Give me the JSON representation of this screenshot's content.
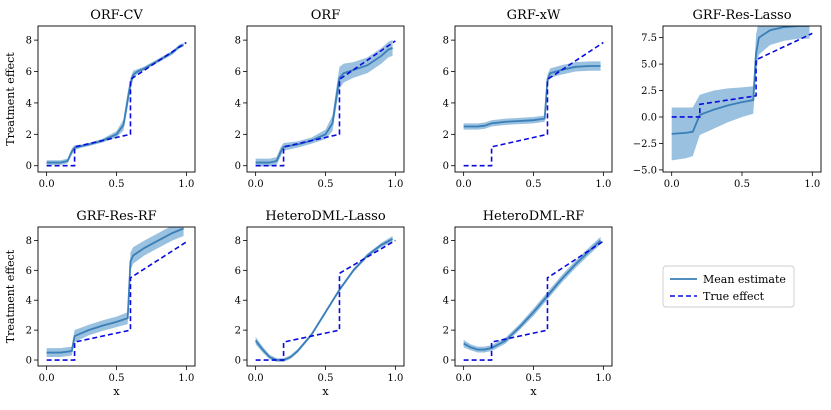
{
  "figure": {
    "legend": {
      "placement": "right",
      "mean_label": "Mean estimate",
      "true_label": "True effect"
    },
    "colors": {
      "mean": "#3a7fb8",
      "band": "#8fbadc",
      "true": "#0a0adf"
    }
  },
  "chart_data": [
    {
      "type": "line",
      "title": "ORF-CV",
      "xlabel": "",
      "ylabel": "Treatment effect",
      "xlim": [
        0,
        1
      ],
      "ylim": [
        -0.4,
        8.9
      ],
      "xticks": [
        0.0,
        0.5,
        1.0
      ],
      "xtick_labels": [
        "0.0",
        "0.5",
        "1.0"
      ],
      "yticks": [
        0,
        2,
        4,
        6,
        8
      ],
      "ytick_labels": [
        "0",
        "2",
        "4",
        "6",
        "8"
      ],
      "series": [
        {
          "name": "Mean estimate",
          "x": [
            0.0,
            0.1,
            0.15,
            0.18,
            0.2,
            0.25,
            0.3,
            0.4,
            0.5,
            0.55,
            0.58,
            0.6,
            0.62,
            0.65,
            0.7,
            0.8,
            0.9,
            0.95,
            0.98
          ],
          "y": [
            0.2,
            0.2,
            0.3,
            0.9,
            1.15,
            1.25,
            1.35,
            1.6,
            2.0,
            2.6,
            4.2,
            5.2,
            5.8,
            6.0,
            6.2,
            6.7,
            7.2,
            7.6,
            7.7
          ],
          "band": [
            0.15,
            0.15,
            0.15,
            0.2,
            0.15,
            0.1,
            0.1,
            0.12,
            0.2,
            0.35,
            0.5,
            0.4,
            0.25,
            0.15,
            0.12,
            0.12,
            0.12,
            0.12,
            0.12
          ]
        },
        {
          "name": "True effect",
          "x": [
            0.0,
            0.2,
            0.2,
            0.6,
            0.6,
            1.0
          ],
          "y": [
            0.0,
            0.0,
            1.2,
            2.0,
            5.5,
            7.85
          ]
        }
      ]
    },
    {
      "type": "line",
      "title": "ORF",
      "xlabel": "",
      "ylabel": "",
      "xlim": [
        0,
        1
      ],
      "ylim": [
        -0.4,
        8.9
      ],
      "xticks": [
        0.0,
        0.5,
        1.0
      ],
      "xtick_labels": [
        "0.0",
        "0.5",
        "1.0"
      ],
      "yticks": [
        0,
        2,
        4,
        6,
        8
      ],
      "ytick_labels": [
        "0",
        "2",
        "4",
        "6",
        "8"
      ],
      "series": [
        {
          "name": "Mean estimate",
          "x": [
            0.0,
            0.1,
            0.15,
            0.18,
            0.2,
            0.3,
            0.4,
            0.5,
            0.55,
            0.58,
            0.6,
            0.63,
            0.7,
            0.8,
            0.9,
            0.95,
            0.98
          ],
          "y": [
            0.2,
            0.2,
            0.3,
            0.9,
            1.2,
            1.35,
            1.6,
            2.0,
            2.7,
            4.5,
            5.6,
            5.9,
            6.1,
            6.4,
            7.0,
            7.4,
            7.5
          ],
          "band": [
            0.25,
            0.25,
            0.25,
            0.3,
            0.25,
            0.2,
            0.2,
            0.3,
            0.5,
            0.6,
            0.7,
            0.6,
            0.5,
            0.5,
            0.5,
            0.5,
            0.5
          ]
        },
        {
          "name": "True effect",
          "x": [
            0.0,
            0.2,
            0.2,
            0.6,
            0.6,
            1.0
          ],
          "y": [
            0.0,
            0.0,
            1.2,
            2.0,
            5.5,
            7.95
          ]
        }
      ]
    },
    {
      "type": "line",
      "title": "GRF-xW",
      "xlabel": "",
      "ylabel": "",
      "xlim": [
        0,
        1
      ],
      "ylim": [
        -0.4,
        8.9
      ],
      "xticks": [
        0.0,
        0.5,
        1.0
      ],
      "xtick_labels": [
        "0.0",
        "0.5",
        "1.0"
      ],
      "yticks": [
        0,
        2,
        4,
        6,
        8
      ],
      "ytick_labels": [
        "0",
        "2",
        "4",
        "6",
        "8"
      ],
      "series": [
        {
          "name": "Mean estimate",
          "x": [
            0.0,
            0.1,
            0.15,
            0.2,
            0.3,
            0.4,
            0.5,
            0.58,
            0.6,
            0.62,
            0.7,
            0.8,
            0.9,
            0.98
          ],
          "y": [
            2.5,
            2.5,
            2.55,
            2.7,
            2.8,
            2.85,
            2.9,
            3.0,
            5.5,
            5.9,
            6.1,
            6.3,
            6.35,
            6.35
          ],
          "band": [
            0.2,
            0.2,
            0.2,
            0.2,
            0.2,
            0.2,
            0.2,
            0.2,
            0.3,
            0.3,
            0.3,
            0.3,
            0.3,
            0.3
          ]
        },
        {
          "name": "True effect",
          "x": [
            0.0,
            0.2,
            0.2,
            0.6,
            0.6,
            1.0
          ],
          "y": [
            0.0,
            0.0,
            1.2,
            2.0,
            5.5,
            7.85
          ]
        }
      ]
    },
    {
      "type": "line",
      "title": "GRF-Res-Lasso",
      "xlabel": "",
      "ylabel": "",
      "xlim": [
        0,
        1
      ],
      "ylim": [
        -5.2,
        8.6
      ],
      "xticks": [
        0.0,
        0.5,
        1.0
      ],
      "xtick_labels": [
        "0.0",
        "0.5",
        "1.0"
      ],
      "yticks": [
        -5.0,
        -2.5,
        0.0,
        2.5,
        5.0,
        7.5
      ],
      "ytick_labels": [
        "−5.0",
        "−2.5",
        "0.0",
        "2.5",
        "5.0",
        "7.5"
      ],
      "series": [
        {
          "name": "Mean estimate",
          "x": [
            0.0,
            0.1,
            0.15,
            0.2,
            0.3,
            0.4,
            0.5,
            0.58,
            0.6,
            0.62,
            0.7,
            0.8,
            0.9,
            0.98
          ],
          "y": [
            -1.6,
            -1.5,
            -1.4,
            0.2,
            0.7,
            1.1,
            1.4,
            1.6,
            6.0,
            7.5,
            8.2,
            8.5,
            8.6,
            8.6
          ],
          "band": [
            2.5,
            2.4,
            2.3,
            1.9,
            1.8,
            1.6,
            1.4,
            1.3,
            1.8,
            1.6,
            1.4,
            1.3,
            1.2,
            1.2
          ]
        },
        {
          "name": "True effect",
          "x": [
            0.0,
            0.2,
            0.2,
            0.6,
            0.6,
            1.0
          ],
          "y": [
            0.0,
            0.0,
            1.2,
            2.0,
            5.4,
            7.9
          ]
        }
      ]
    },
    {
      "type": "line",
      "title": "GRF-Res-RF",
      "xlabel": "x",
      "ylabel": "Treatment effect",
      "xlim": [
        0,
        1
      ],
      "ylim": [
        -0.4,
        8.9
      ],
      "xticks": [
        0.0,
        0.5,
        1.0
      ],
      "xtick_labels": [
        "0.0",
        "0.5",
        "1.0"
      ],
      "yticks": [
        0,
        2,
        4,
        6,
        8
      ],
      "ytick_labels": [
        "0",
        "2",
        "4",
        "6",
        "8"
      ],
      "series": [
        {
          "name": "Mean estimate",
          "x": [
            0.0,
            0.1,
            0.18,
            0.2,
            0.3,
            0.4,
            0.5,
            0.58,
            0.6,
            0.62,
            0.7,
            0.8,
            0.9,
            0.98
          ],
          "y": [
            0.5,
            0.5,
            0.6,
            1.6,
            2.0,
            2.3,
            2.55,
            2.8,
            6.6,
            7.0,
            7.5,
            8.0,
            8.5,
            8.8
          ],
          "band": [
            0.3,
            0.3,
            0.3,
            0.4,
            0.35,
            0.35,
            0.35,
            0.4,
            0.6,
            0.55,
            0.5,
            0.5,
            0.5,
            0.5
          ]
        },
        {
          "name": "True effect",
          "x": [
            0.0,
            0.2,
            0.2,
            0.6,
            0.6,
            1.0
          ],
          "y": [
            0.0,
            0.0,
            1.2,
            2.0,
            5.5,
            7.9
          ]
        }
      ]
    },
    {
      "type": "line",
      "title": "HeteroDML-Lasso",
      "xlabel": "x",
      "ylabel": "",
      "xlim": [
        0,
        1
      ],
      "ylim": [
        -0.4,
        8.9
      ],
      "xticks": [
        0.0,
        0.5,
        1.0
      ],
      "xtick_labels": [
        "0.0",
        "0.5",
        "1.0"
      ],
      "yticks": [
        0,
        2,
        4,
        6,
        8
      ],
      "ytick_labels": [
        "0",
        "2",
        "4",
        "6",
        "8"
      ],
      "series": [
        {
          "name": "Mean estimate",
          "x": [
            0.0,
            0.05,
            0.1,
            0.15,
            0.2,
            0.25,
            0.3,
            0.4,
            0.5,
            0.6,
            0.7,
            0.8,
            0.9,
            0.98
          ],
          "y": [
            1.3,
            0.7,
            0.2,
            0.0,
            0.0,
            0.2,
            0.6,
            1.7,
            3.2,
            4.7,
            6.0,
            7.0,
            7.7,
            8.1
          ],
          "band": [
            0.25,
            0.2,
            0.15,
            0.12,
            0.12,
            0.12,
            0.12,
            0.12,
            0.12,
            0.12,
            0.12,
            0.12,
            0.15,
            0.2
          ]
        },
        {
          "name": "True effect",
          "x": [
            0.0,
            0.2,
            0.2,
            0.6,
            0.6,
            1.0
          ],
          "y": [
            0.0,
            0.0,
            1.2,
            2.0,
            5.8,
            8.0
          ]
        }
      ]
    },
    {
      "type": "line",
      "title": "HeteroDML-RF",
      "xlabel": "x",
      "ylabel": "",
      "xlim": [
        0,
        1
      ],
      "ylim": [
        -0.4,
        8.9
      ],
      "xticks": [
        0.0,
        0.5,
        1.0
      ],
      "xtick_labels": [
        "0.0",
        "0.5",
        "1.0"
      ],
      "yticks": [
        0,
        2,
        4,
        6,
        8
      ],
      "ytick_labels": [
        "0",
        "2",
        "4",
        "6",
        "8"
      ],
      "series": [
        {
          "name": "Mean estimate",
          "x": [
            0.0,
            0.05,
            0.1,
            0.15,
            0.2,
            0.3,
            0.4,
            0.5,
            0.6,
            0.7,
            0.8,
            0.9,
            0.98
          ],
          "y": [
            1.1,
            0.85,
            0.7,
            0.7,
            0.8,
            1.3,
            2.2,
            3.2,
            4.3,
            5.4,
            6.4,
            7.3,
            8.0
          ],
          "band": [
            0.25,
            0.2,
            0.2,
            0.2,
            0.2,
            0.2,
            0.2,
            0.25,
            0.25,
            0.25,
            0.25,
            0.25,
            0.25
          ]
        },
        {
          "name": "True effect",
          "x": [
            0.0,
            0.2,
            0.2,
            0.6,
            0.6,
            1.0
          ],
          "y": [
            0.0,
            0.0,
            1.2,
            2.0,
            5.5,
            7.95
          ]
        }
      ]
    }
  ]
}
